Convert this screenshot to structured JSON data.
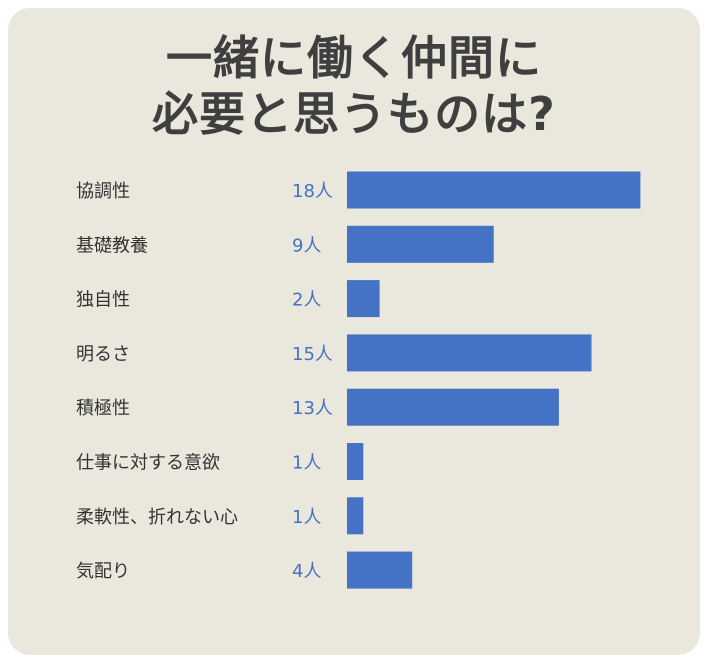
{
  "title": {
    "line1": "一緒に働く仲間に",
    "line2": "必要と思うものは?"
  },
  "colors": {
    "background": "#eae7dd",
    "bar": "#4472c4",
    "value_text": "#4472c4",
    "title_text": "#3f3f3f"
  },
  "unit": "人",
  "chart_data": {
    "type": "bar",
    "orientation": "horizontal",
    "categories": [
      "協調性",
      "基礎教養",
      "独自性",
      "明るさ",
      "積極性",
      "仕事に対する意欲",
      "柔軟性、折れない心",
      "気配り"
    ],
    "values": [
      18,
      9,
      2,
      15,
      13,
      1,
      1,
      4
    ],
    "value_labels": [
      "18人",
      "9人",
      "2人",
      "15人",
      "13人",
      "1人",
      "1人",
      "4人"
    ],
    "grid": false,
    "legend": "none"
  }
}
